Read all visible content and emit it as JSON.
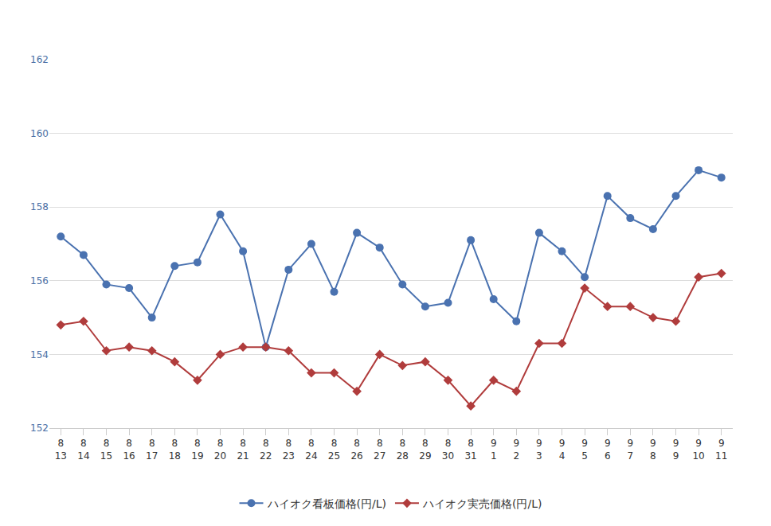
{
  "chart_data": {
    "type": "line",
    "categories": [
      "8\n13",
      "8\n14",
      "8\n15",
      "8\n16",
      "8\n17",
      "8\n18",
      "8\n19",
      "8\n20",
      "8\n21",
      "8\n22",
      "8\n23",
      "8\n24",
      "8\n25",
      "8\n26",
      "8\n27",
      "8\n28",
      "8\n29",
      "8\n30",
      "8\n31",
      "9\n1",
      "9\n2",
      "9\n3",
      "9\n4",
      "9\n5",
      "9\n6",
      "9\n7",
      "9\n8",
      "9\n9",
      "9\n10",
      "9\n11"
    ],
    "series": [
      {
        "name": "ハイオク看板価格(円/L)",
        "color": "#4a72b0",
        "marker": "circle",
        "values": [
          157.2,
          156.7,
          155.9,
          155.8,
          155.0,
          156.4,
          156.5,
          157.8,
          156.8,
          154.2,
          156.3,
          157.0,
          155.7,
          157.3,
          156.9,
          155.9,
          155.3,
          155.4,
          157.1,
          155.5,
          154.9,
          157.3,
          156.8,
          156.1,
          158.3,
          157.7,
          157.4,
          158.3,
          159.0,
          158.8
        ]
      },
      {
        "name": "ハイオク実売価格(円/L)",
        "color": "#b03c3c",
        "marker": "diamond",
        "values": [
          154.8,
          154.9,
          154.1,
          154.2,
          154.1,
          153.8,
          153.3,
          154.0,
          154.2,
          154.2,
          154.1,
          153.5,
          153.5,
          153.0,
          154.0,
          153.7,
          153.8,
          153.3,
          152.6,
          153.3,
          153.0,
          154.3,
          154.3,
          155.8,
          155.3,
          155.3,
          155.0,
          154.9,
          156.1,
          156.2
        ]
      }
    ],
    "ylim": [
      152,
      162
    ],
    "yticks": [
      152,
      154,
      156,
      158,
      160,
      162
    ],
    "grid": true,
    "legend": "bottom"
  }
}
